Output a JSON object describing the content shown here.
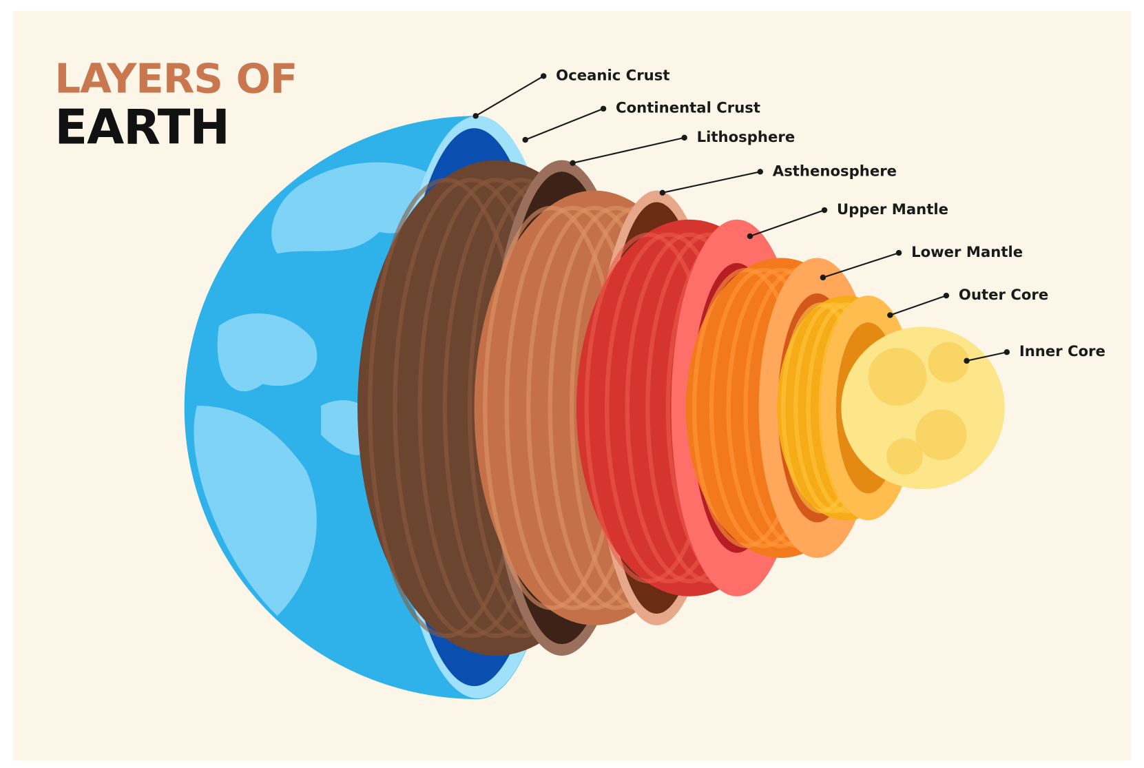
{
  "title": {
    "line1": "LAYERS OF",
    "line2": "EARTH"
  },
  "labels": [
    "Oceanic Crust",
    "Continental Crust",
    "Lithosphere",
    "Asthenosphere",
    "Upper Mantle",
    "Lower Mantle",
    "Outer Core",
    "Inner Core"
  ]
}
